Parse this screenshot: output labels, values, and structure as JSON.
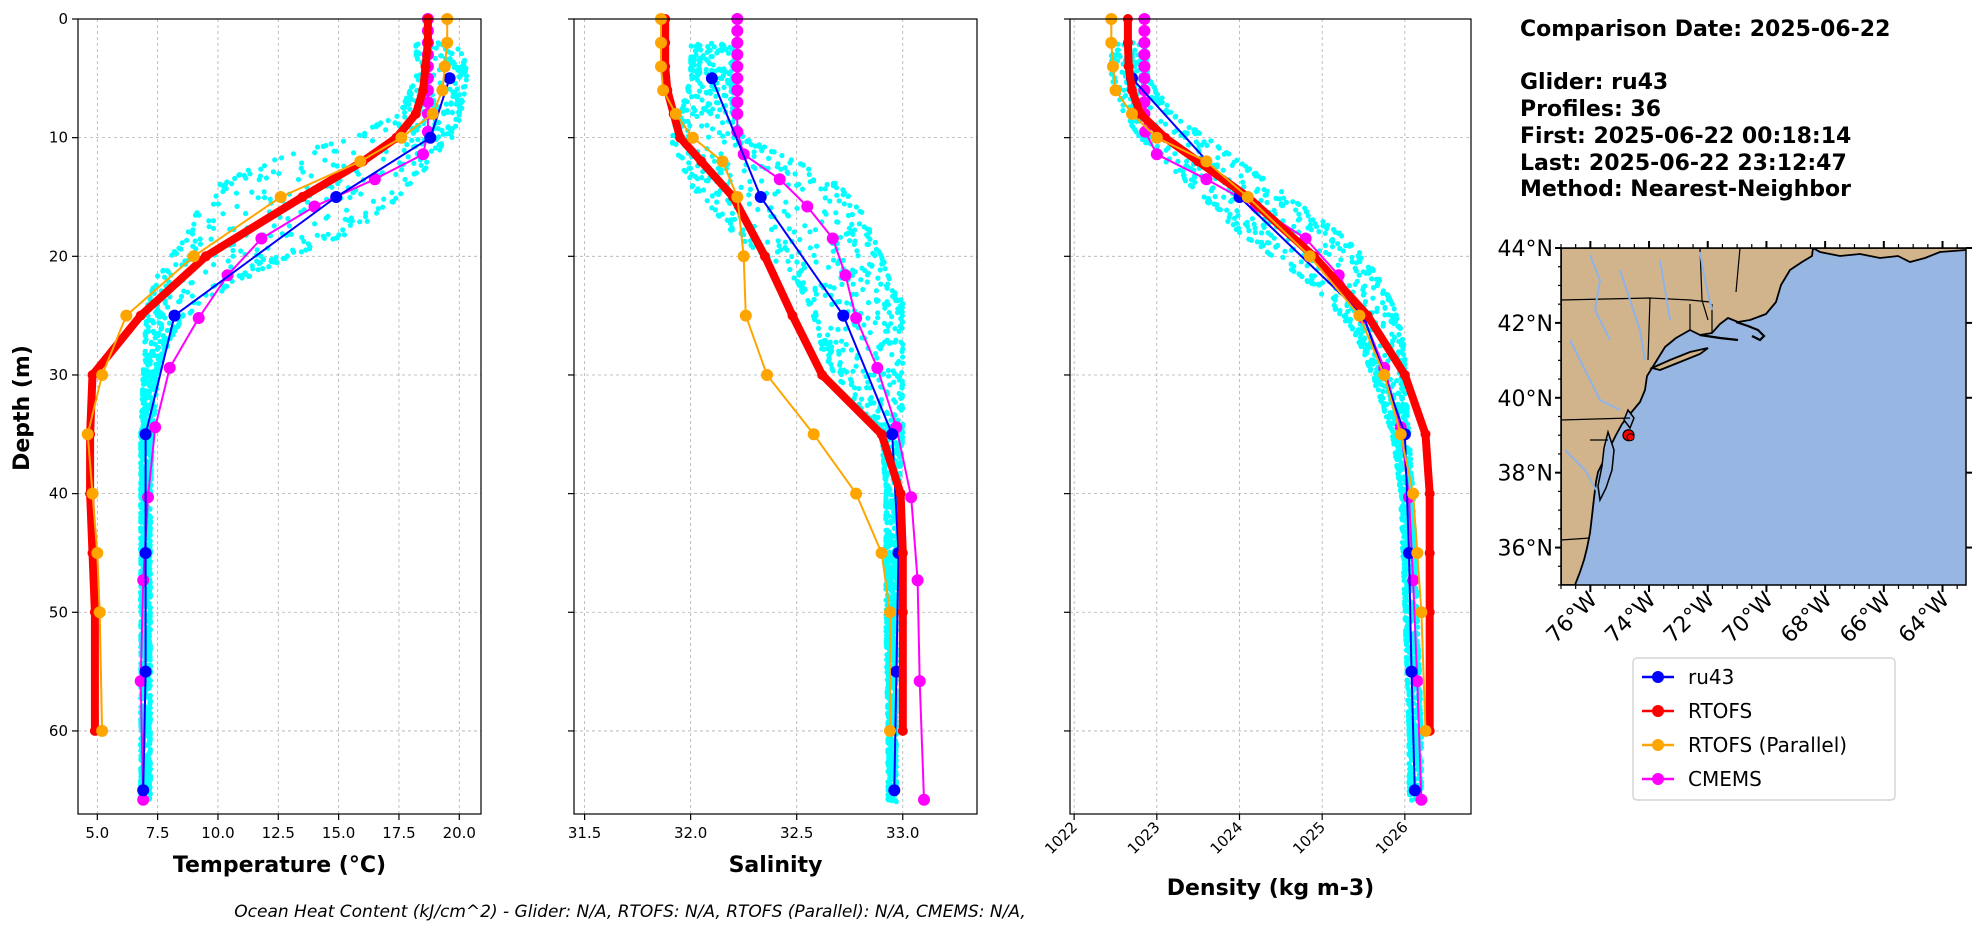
{
  "info": {
    "comparison_date": "Comparison Date: 2025-06-22",
    "glider": "Glider: ru43",
    "profiles": "Profiles: 36",
    "first": "First: 2025-06-22 00:18:14",
    "last": "Last: 2025-06-22 23:12:47",
    "method": "Method: Nearest-Neighbor"
  },
  "footer": "Ocean Heat Content (kJ/cm^2) - Glider: N/A,  RTOFS: N/A,  RTOFS (Parallel): N/A,  CMEMS: N/A,",
  "colors": {
    "glider_scatter": "#00ffff",
    "ru43": "#0000ff",
    "rtofs": "#ff0000",
    "rtofs_parallel": "#ffa500",
    "cmems": "#ff00ff",
    "land": "#d2b48c",
    "ocean": "#97b6e1",
    "rivers": "#8fb3e6"
  },
  "legend": {
    "placement": "below-map",
    "entries": [
      "ru43",
      "RTOFS",
      "RTOFS (Parallel)",
      "CMEMS"
    ]
  },
  "chart_data": [
    {
      "type": "line",
      "id": "temperature",
      "xlabel": "Temperature (°C)",
      "ylabel": "Depth (m)",
      "xlim": [
        4.2,
        20.9
      ],
      "ylim": [
        67,
        0
      ],
      "xticks": [
        5.0,
        7.5,
        10.0,
        12.5,
        15.0,
        17.5,
        20.0
      ],
      "xtick_labels": [
        "5.0",
        "7.5",
        "10.0",
        "12.5",
        "15.0",
        "17.5",
        "20.0"
      ],
      "yticks": [
        0,
        10,
        20,
        30,
        40,
        50,
        60
      ],
      "grid": true,
      "glider_envelope": {
        "depth": [
          2,
          5,
          8,
          10,
          12,
          14,
          16,
          18,
          20,
          22,
          24,
          26,
          28,
          30,
          35,
          40,
          50,
          60,
          66
        ],
        "min": [
          18.2,
          18.2,
          17.5,
          15.5,
          12.0,
          10.0,
          9.2,
          8.7,
          8.0,
          7.4,
          7.1,
          7.0,
          6.9,
          6.9,
          6.8,
          6.8,
          6.8,
          6.8,
          6.8
        ],
        "max": [
          20.3,
          20.3,
          20.1,
          19.7,
          18.9,
          17.9,
          17.0,
          15.5,
          13.0,
          11.0,
          9.2,
          8.3,
          7.8,
          7.5,
          7.3,
          7.2,
          7.2,
          7.2,
          7.2
        ]
      },
      "series": [
        {
          "name": "ru43",
          "depth": [
            5,
            10,
            15,
            25,
            35,
            45,
            55,
            65
          ],
          "values": [
            19.6,
            18.8,
            14.9,
            8.2,
            7.0,
            7.0,
            7.0,
            6.9
          ]
        },
        {
          "name": "RTOFS",
          "depth": [
            0,
            2,
            4,
            6,
            8,
            10,
            12,
            15,
            20,
            25,
            30,
            35,
            40,
            45,
            50,
            60
          ],
          "values": [
            18.7,
            18.7,
            18.6,
            18.5,
            18.2,
            17.4,
            16.0,
            13.5,
            9.5,
            6.8,
            4.8,
            4.7,
            4.7,
            4.8,
            4.9,
            4.9
          ]
        },
        {
          "name": "RTOFS (Parallel)",
          "depth": [
            0,
            2,
            4,
            6,
            8,
            10,
            12,
            15,
            20,
            25,
            30,
            35,
            40,
            45,
            50,
            60
          ],
          "values": [
            19.5,
            19.5,
            19.4,
            19.3,
            18.9,
            17.6,
            15.9,
            12.6,
            9.0,
            6.2,
            5.2,
            4.6,
            4.8,
            5.0,
            5.1,
            5.2
          ]
        },
        {
          "name": "CMEMS",
          "depth": [
            0,
            1,
            2,
            3,
            4,
            5,
            6,
            7,
            8,
            9.5,
            11.4,
            13.5,
            15.8,
            18.5,
            21.6,
            25.2,
            29.4,
            34.4,
            40.3,
            47.3,
            55.8,
            65.8
          ],
          "values": [
            18.7,
            18.7,
            18.7,
            18.7,
            18.7,
            18.7,
            18.7,
            18.7,
            18.7,
            18.7,
            18.5,
            16.5,
            14.0,
            11.8,
            10.4,
            9.2,
            8.0,
            7.4,
            7.1,
            6.9,
            6.8,
            6.9
          ]
        }
      ]
    },
    {
      "type": "line",
      "id": "salinity",
      "xlabel": "Salinity",
      "ylabel": "",
      "xlim": [
        31.45,
        33.35
      ],
      "ylim": [
        67,
        0
      ],
      "xticks": [
        31.5,
        32.0,
        32.5,
        33.0
      ],
      "xtick_labels": [
        "31.5",
        "32.0",
        "32.5",
        "33.0"
      ],
      "yticks": [
        0,
        10,
        20,
        30,
        40,
        50,
        60
      ],
      "grid": true,
      "glider_envelope": {
        "depth": [
          2,
          5,
          8,
          10,
          12,
          14,
          16,
          18,
          20,
          22,
          24,
          26,
          28,
          30,
          35,
          40,
          50,
          60,
          66
        ],
        "min": [
          32.0,
          32.0,
          31.95,
          31.9,
          31.95,
          32.0,
          32.1,
          32.2,
          32.35,
          32.5,
          32.55,
          32.6,
          32.62,
          32.68,
          32.9,
          32.92,
          32.92,
          32.93,
          32.93
        ],
        "max": [
          32.2,
          32.2,
          32.2,
          32.25,
          32.5,
          32.7,
          32.8,
          32.85,
          32.9,
          32.95,
          33.0,
          33.0,
          33.0,
          33.0,
          33.0,
          32.98,
          32.97,
          32.97,
          32.97
        ]
      },
      "series": [
        {
          "name": "ru43",
          "depth": [
            5,
            15,
            25,
            35,
            45,
            55,
            65
          ],
          "values": [
            32.1,
            32.33,
            32.72,
            32.95,
            32.98,
            32.97,
            32.96
          ]
        },
        {
          "name": "RTOFS",
          "depth": [
            0,
            2,
            4,
            6,
            8,
            10,
            12,
            15,
            20,
            25,
            30,
            35,
            40,
            45,
            50,
            60
          ],
          "values": [
            31.88,
            31.88,
            31.88,
            31.89,
            31.92,
            31.95,
            32.05,
            32.2,
            32.35,
            32.48,
            32.62,
            32.9,
            32.99,
            33.0,
            33.0,
            33.0
          ]
        },
        {
          "name": "RTOFS (Parallel)",
          "depth": [
            0,
            2,
            4,
            6,
            8,
            10,
            12,
            15,
            20,
            25,
            30,
            35,
            40,
            45,
            50,
            60
          ],
          "values": [
            31.86,
            31.86,
            31.86,
            31.87,
            31.93,
            32.01,
            32.15,
            32.22,
            32.25,
            32.26,
            32.36,
            32.58,
            32.78,
            32.9,
            32.94,
            32.94
          ]
        },
        {
          "name": "CMEMS",
          "depth": [
            0,
            1,
            2,
            3,
            4,
            5,
            6,
            7,
            8,
            9.5,
            11.4,
            13.5,
            15.8,
            18.5,
            21.6,
            25.2,
            29.4,
            34.4,
            40.3,
            47.3,
            55.8,
            65.8
          ],
          "values": [
            32.22,
            32.22,
            32.22,
            32.22,
            32.22,
            32.22,
            32.22,
            32.22,
            32.22,
            32.22,
            32.25,
            32.42,
            32.55,
            32.67,
            32.73,
            32.78,
            32.88,
            32.97,
            33.04,
            33.07,
            33.08,
            33.1
          ]
        }
      ]
    },
    {
      "type": "line",
      "id": "density",
      "xlabel": "Density (kg m-3)",
      "ylabel": "",
      "xlim": [
        1021.95,
        1026.8
      ],
      "ylim": [
        67,
        0
      ],
      "xticks": [
        1022,
        1023,
        1024,
        1025,
        1026
      ],
      "xtick_labels": [
        "1022",
        "1023",
        "1024",
        "1025",
        "1026"
      ],
      "yticks": [
        0,
        10,
        20,
        30,
        40,
        50,
        60
      ],
      "grid": true,
      "glider_envelope": {
        "depth": [
          2,
          5,
          8,
          10,
          12,
          14,
          16,
          18,
          20,
          22,
          24,
          26,
          28,
          30,
          35,
          40,
          50,
          60,
          66
        ],
        "min": [
          1022.45,
          1022.45,
          1022.6,
          1022.8,
          1023.1,
          1023.4,
          1023.7,
          1024.0,
          1024.4,
          1024.8,
          1025.1,
          1025.35,
          1025.5,
          1025.6,
          1025.85,
          1025.95,
          1026.0,
          1026.05,
          1026.05
        ],
        "max": [
          1022.85,
          1022.9,
          1023.2,
          1023.6,
          1024.0,
          1024.4,
          1024.8,
          1025.2,
          1025.5,
          1025.7,
          1025.85,
          1025.95,
          1026.0,
          1026.0,
          1026.05,
          1026.1,
          1026.15,
          1026.2,
          1026.2
        ]
      },
      "series": [
        {
          "name": "ru43",
          "depth": [
            5,
            15,
            25,
            35,
            45,
            55,
            65
          ],
          "values": [
            1022.7,
            1024.0,
            1025.5,
            1026.0,
            1026.05,
            1026.08,
            1026.12
          ]
        },
        {
          "name": "RTOFS",
          "depth": [
            0,
            2,
            4,
            6,
            8,
            10,
            12,
            15,
            20,
            25,
            30,
            35,
            40,
            45,
            50,
            60
          ],
          "values": [
            1022.65,
            1022.65,
            1022.66,
            1022.7,
            1022.8,
            1023.1,
            1023.5,
            1024.1,
            1024.9,
            1025.55,
            1026.0,
            1026.25,
            1026.3,
            1026.3,
            1026.3,
            1026.3
          ]
        },
        {
          "name": "RTOFS (Parallel)",
          "depth": [
            0,
            2,
            4,
            6,
            8,
            10,
            12,
            15,
            20,
            25,
            30,
            35,
            40,
            45,
            50,
            60
          ],
          "values": [
            1022.45,
            1022.45,
            1022.47,
            1022.5,
            1022.7,
            1023.0,
            1023.6,
            1024.1,
            1024.85,
            1025.45,
            1025.75,
            1025.95,
            1026.1,
            1026.15,
            1026.2,
            1026.25
          ]
        },
        {
          "name": "CMEMS",
          "depth": [
            0,
            1,
            2,
            3,
            4,
            5,
            6,
            7,
            8,
            9.5,
            11.4,
            13.5,
            15.8,
            18.5,
            21.6,
            25.2,
            29.4,
            34.4,
            40.3,
            47.3,
            55.8,
            65.8
          ],
          "values": [
            1022.85,
            1022.85,
            1022.85,
            1022.85,
            1022.85,
            1022.85,
            1022.85,
            1022.85,
            1022.85,
            1022.86,
            1023.0,
            1023.6,
            1024.2,
            1024.8,
            1025.2,
            1025.5,
            1025.75,
            1025.95,
            1026.05,
            1026.1,
            1026.15,
            1026.2
          ]
        }
      ]
    }
  ],
  "map": {
    "lat_ticks": [
      "44°N",
      "42°N",
      "40°N",
      "38°N",
      "36°N"
    ],
    "lon_ticks": [
      "76°W",
      "74°W",
      "72°W",
      "70°W",
      "68°W",
      "66°W",
      "64°W"
    ],
    "lat_values": [
      44,
      42,
      40,
      38,
      36
    ],
    "lon_values": [
      -76,
      -74,
      -72,
      -70,
      -68,
      -66,
      -64
    ],
    "extent": {
      "lon": [
        -77.0,
        -63.2
      ],
      "lat": [
        35.0,
        44.0
      ]
    },
    "glider_position": {
      "lon": -74.7,
      "lat": 39.0
    }
  }
}
